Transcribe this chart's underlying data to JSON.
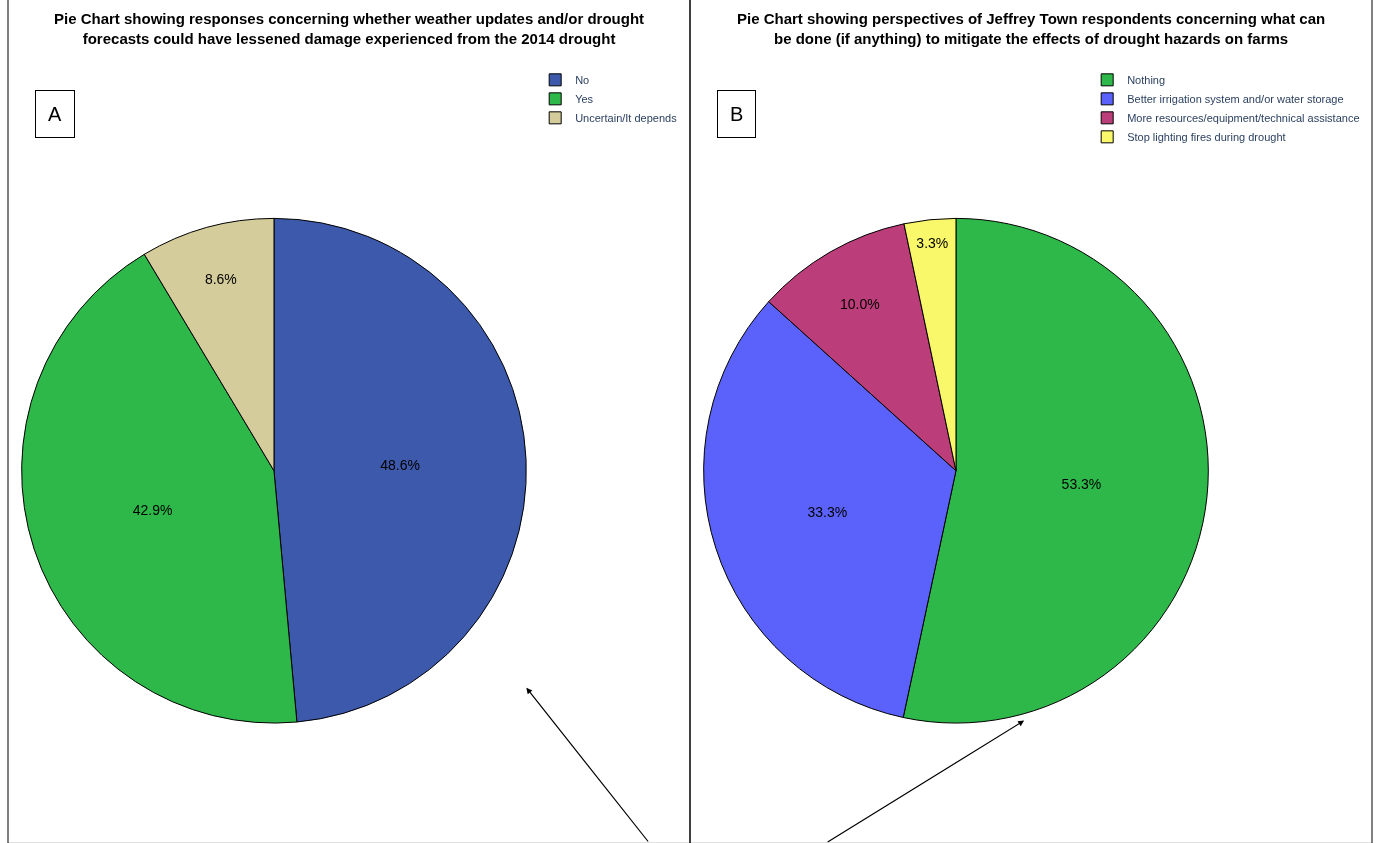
{
  "chart_data": [
    {
      "type": "pie",
      "title": "Pie Chart showing responses concerning whether weather updates and/or drought forecasts could have lessened damage experienced from the 2014 drought",
      "annotations": [
        "A"
      ],
      "categories": [
        "No",
        "Yes",
        "Uncertain/It depends"
      ],
      "values": [
        48.6,
        42.9,
        8.6
      ],
      "colors": [
        "#3d59ab",
        "#2eb84a",
        "#d4cc9a"
      ],
      "value_labels": [
        "48.6%",
        "42.9%",
        "8.6%"
      ],
      "legend": "top right"
    },
    {
      "type": "pie",
      "title": "Pie Chart showing perspectives of Jeffrey Town respondents concerning what can be done (if anything) to mitigate the effects of drought hazards on farms",
      "annotations": [
        "B"
      ],
      "categories": [
        "Nothing",
        "Better irrigation system and/or water storage",
        "More resources/equipment/technical assistance",
        "Stop lighting fires during drought"
      ],
      "values": [
        53.3,
        33.3,
        10.0,
        3.3
      ],
      "colors": [
        "#2fb84a",
        "#5b62fb",
        "#bb3d79",
        "#f8f86a"
      ],
      "value_labels": [
        "53.3%",
        "33.3%",
        "10.0%",
        "3.3%"
      ],
      "legend": "top right"
    }
  ]
}
